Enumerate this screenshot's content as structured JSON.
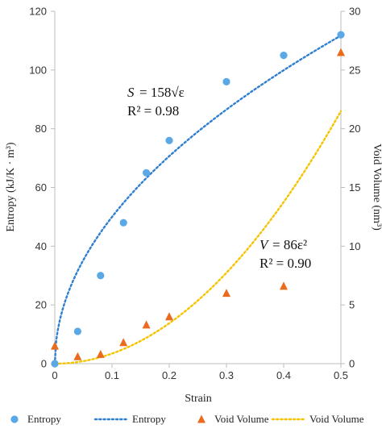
{
  "chart_data": {
    "type": "scatter",
    "xlabel": "Strain",
    "ylabel_left": "Entropy (kJ/K · m³)",
    "ylabel_right": "Void Volume (nm³)",
    "xlim": [
      0,
      0.5
    ],
    "ylim_left": [
      0,
      120
    ],
    "ylim_right": [
      0,
      30
    ],
    "x_ticks": [
      0,
      0.1,
      0.2,
      0.3,
      0.4,
      0.5
    ],
    "x_tick_labels": [
      "0",
      "0.1",
      "0.2",
      "0.3",
      "0.4",
      "0.5"
    ],
    "y_left_ticks": [
      0,
      20,
      40,
      60,
      80,
      100,
      120
    ],
    "y_left_tick_labels": [
      "0",
      "20",
      "40",
      "60",
      "80",
      "100",
      "120"
    ],
    "y_right_ticks": [
      0,
      5,
      10,
      15,
      20,
      25,
      30
    ],
    "y_right_tick_labels": [
      "0",
      "5",
      "10",
      "15",
      "20",
      "25",
      "30"
    ],
    "grid": false,
    "legend_position": "bottom",
    "series": [
      {
        "name": "Entropy",
        "kind": "scatter",
        "marker": "circle",
        "axis": "left",
        "color": "#5aa9e6",
        "x": [
          0,
          0.04,
          0.08,
          0.12,
          0.16,
          0.2,
          0.3,
          0.4,
          0.5
        ],
        "y": [
          0,
          11,
          30,
          48,
          65,
          76,
          96,
          105,
          112
        ]
      },
      {
        "name": "Entropy",
        "kind": "fit",
        "axis": "left",
        "color": "#2f7fd1",
        "dash": "dotted",
        "function": "158*sqrt(x)"
      },
      {
        "name": "Void Volume",
        "kind": "scatter",
        "marker": "triangle",
        "axis": "right",
        "color": "#ea6a1e",
        "x": [
          0,
          0.04,
          0.08,
          0.12,
          0.16,
          0.2,
          0.3,
          0.4,
          0.5
        ],
        "y": [
          1.5,
          0.6,
          0.8,
          1.8,
          3.3,
          4.0,
          6.0,
          6.6,
          26.5
        ]
      },
      {
        "name": "Void Volume",
        "kind": "fit",
        "axis": "right",
        "color": "#f5c400",
        "dash": "dotted",
        "function": "86*x^2"
      }
    ],
    "annotations": {
      "entropy_eq_lhs": "S",
      "entropy_eq_rhs": "= 158√ε",
      "entropy_r2": "R² = 0.98",
      "void_eq_lhs": "V",
      "void_eq_rhs": "= 86ε²",
      "void_r2": "R² = 0.90"
    }
  }
}
